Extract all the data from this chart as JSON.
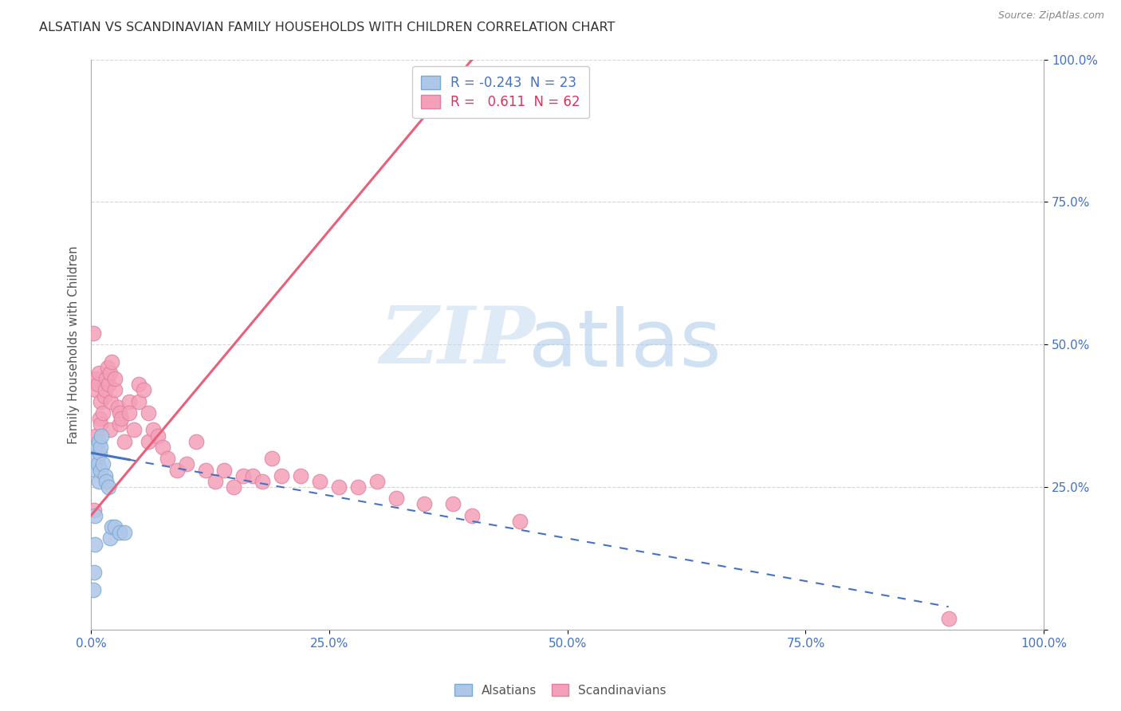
{
  "title": "ALSATIAN VS SCANDINAVIAN FAMILY HOUSEHOLDS WITH CHILDREN CORRELATION CHART",
  "source": "Source: ZipAtlas.com",
  "ylabel": "Family Households with Children",
  "watermark_zip": "ZIP",
  "watermark_atlas": "atlas",
  "alsatian_color": "#aec6e8",
  "alsatian_edge_color": "#7aaad0",
  "scandinavian_color": "#f4a0b8",
  "scandinavian_edge_color": "#e080a0",
  "alsatian_line_color": "#4472c4",
  "scandinavian_line_color": "#e8607a",
  "background_color": "#ffffff",
  "grid_color": "#cccccc",
  "title_color": "#333333",
  "axis_label_color": "#4472c4",
  "source_color": "#888888",
  "xmin": 0,
  "xmax": 100,
  "ymin": 0,
  "ymax": 100,
  "x_ticks": [
    0,
    25,
    50,
    75,
    100
  ],
  "x_tick_labels": [
    "0.0%",
    "25.0%",
    "50.0%",
    "75.0%",
    "100.0%"
  ],
  "y_ticks": [
    0,
    25,
    50,
    75,
    100
  ],
  "y_tick_labels": [
    "",
    "25.0%",
    "50.0%",
    "75.0%",
    "100.0%"
  ],
  "alsatian_R": "-0.243",
  "alsatian_N": "23",
  "scandinavian_R": "0.611",
  "scandinavian_N": "62",
  "als_x": [
    0.2,
    0.3,
    0.4,
    0.4,
    0.5,
    0.5,
    0.6,
    0.7,
    0.8,
    0.8,
    0.9,
    1.0,
    1.0,
    1.1,
    1.2,
    1.5,
    1.6,
    1.8,
    2.0,
    2.2,
    2.5,
    3.0,
    3.5
  ],
  "als_y": [
    7.0,
    10.0,
    15.0,
    20.0,
    28.0,
    32.0,
    30.0,
    29.0,
    33.0,
    26.0,
    31.0,
    28.0,
    32.0,
    34.0,
    29.0,
    27.0,
    26.0,
    25.0,
    16.0,
    18.0,
    18.0,
    17.0,
    17.0
  ],
  "scan_x": [
    0.2,
    0.3,
    0.5,
    0.5,
    0.6,
    0.7,
    0.8,
    0.9,
    1.0,
    1.0,
    1.2,
    1.4,
    1.5,
    1.6,
    1.7,
    1.8,
    2.0,
    2.0,
    2.1,
    2.2,
    2.5,
    2.5,
    2.8,
    3.0,
    3.0,
    3.2,
    3.5,
    4.0,
    4.0,
    4.5,
    5.0,
    5.0,
    5.5,
    6.0,
    6.0,
    6.5,
    7.0,
    7.5,
    8.0,
    9.0,
    10.0,
    11.0,
    12.0,
    13.0,
    14.0,
    15.0,
    16.0,
    17.0,
    18.0,
    19.0,
    20.0,
    22.0,
    24.0,
    26.0,
    28.0,
    30.0,
    32.0,
    35.0,
    38.0,
    40.0,
    45.0,
    90.0
  ],
  "scan_y": [
    52.0,
    21.0,
    34.0,
    42.0,
    44.0,
    43.0,
    45.0,
    37.0,
    40.0,
    36.0,
    38.0,
    41.0,
    42.0,
    44.0,
    46.0,
    43.0,
    45.0,
    35.0,
    40.0,
    47.0,
    42.0,
    44.0,
    39.0,
    38.0,
    36.0,
    37.0,
    33.0,
    40.0,
    38.0,
    35.0,
    43.0,
    40.0,
    42.0,
    38.0,
    33.0,
    35.0,
    34.0,
    32.0,
    30.0,
    28.0,
    29.0,
    33.0,
    28.0,
    26.0,
    28.0,
    25.0,
    27.0,
    27.0,
    26.0,
    30.0,
    27.0,
    27.0,
    26.0,
    25.0,
    25.0,
    26.0,
    23.0,
    22.0,
    22.0,
    20.0,
    19.0,
    2.0
  ],
  "als_line_x0": 0,
  "als_line_y0": 31.0,
  "als_line_x1": 50,
  "als_line_y1": 16.0,
  "als_solid_end": 4.0,
  "scan_line_x0": 0,
  "scan_line_y0": 20.0,
  "scan_line_x1": 30,
  "scan_line_y1": 80.0
}
